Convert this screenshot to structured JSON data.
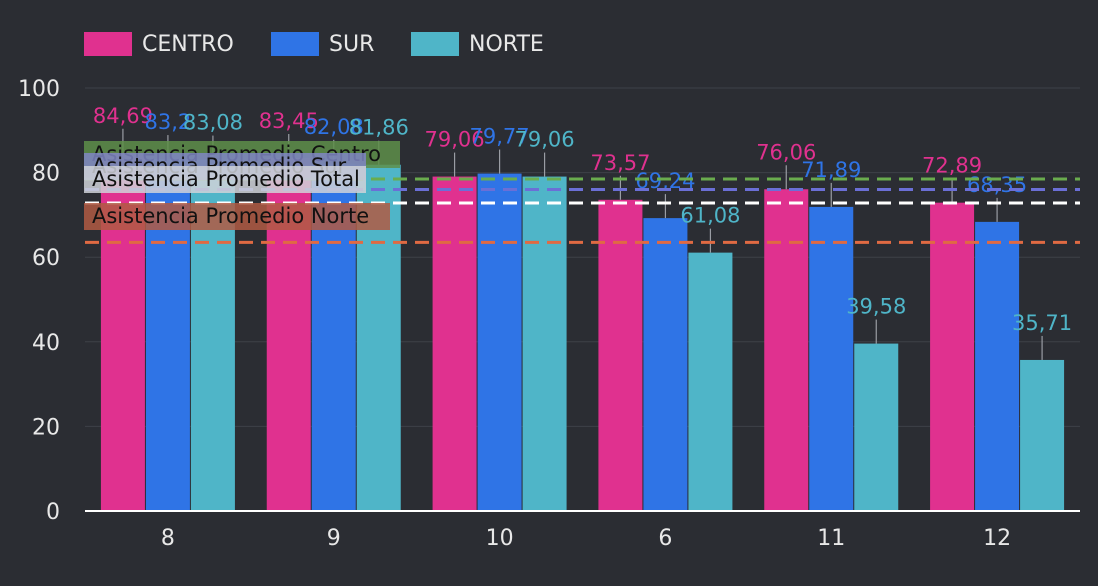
{
  "chart_data": {
    "type": "bar",
    "categories": [
      "8",
      "9",
      "10",
      "6",
      "11",
      "12"
    ],
    "series": [
      {
        "name": "CENTRO",
        "color": "#e0318f",
        "values": [
          84.69,
          83.45,
          79.06,
          73.57,
          76.06,
          72.89
        ],
        "labels": [
          "84,69",
          "83,45",
          "79,06",
          "73,57",
          "76,06",
          "72,89"
        ]
      },
      {
        "name": "SUR",
        "color": "#2f74e6",
        "values": [
          83.2,
          82.08,
          79.77,
          69.24,
          71.89,
          68.35
        ],
        "labels": [
          "83,2",
          "82,08",
          "79,77",
          "69,24",
          "71,89",
          "68,35"
        ]
      },
      {
        "name": "NORTE",
        "color": "#4fb5c8",
        "values": [
          83.08,
          81.86,
          79.06,
          61.08,
          39.58,
          35.71
        ],
        "labels": [
          "83,08",
          "81,86",
          "79,06",
          "61,08",
          "39,58",
          "35,71"
        ]
      }
    ],
    "reference_lines": [
      {
        "label": "Asistencia Promedio Centro",
        "value": 78.5,
        "color": "#6aac4e",
        "box_color": "#5e8f4a"
      },
      {
        "label": "Asistencia Promedio Sur",
        "value": 76.0,
        "color": "#6b6fd6",
        "box_color": "#7f86c4"
      },
      {
        "label": "Asistencia Promedio Total",
        "value": 72.8,
        "color": "#ffffff",
        "box_color": "#cfd2d8"
      },
      {
        "label": "Asistencia Promedio Norte",
        "value": 63.5,
        "color": "#e06a43",
        "box_color": "#b05a43"
      }
    ],
    "yticks": [
      "0",
      "20",
      "40",
      "60",
      "80",
      "100"
    ],
    "ylim": [
      0,
      100
    ],
    "title": "",
    "xlabel": "",
    "ylabel": ""
  }
}
